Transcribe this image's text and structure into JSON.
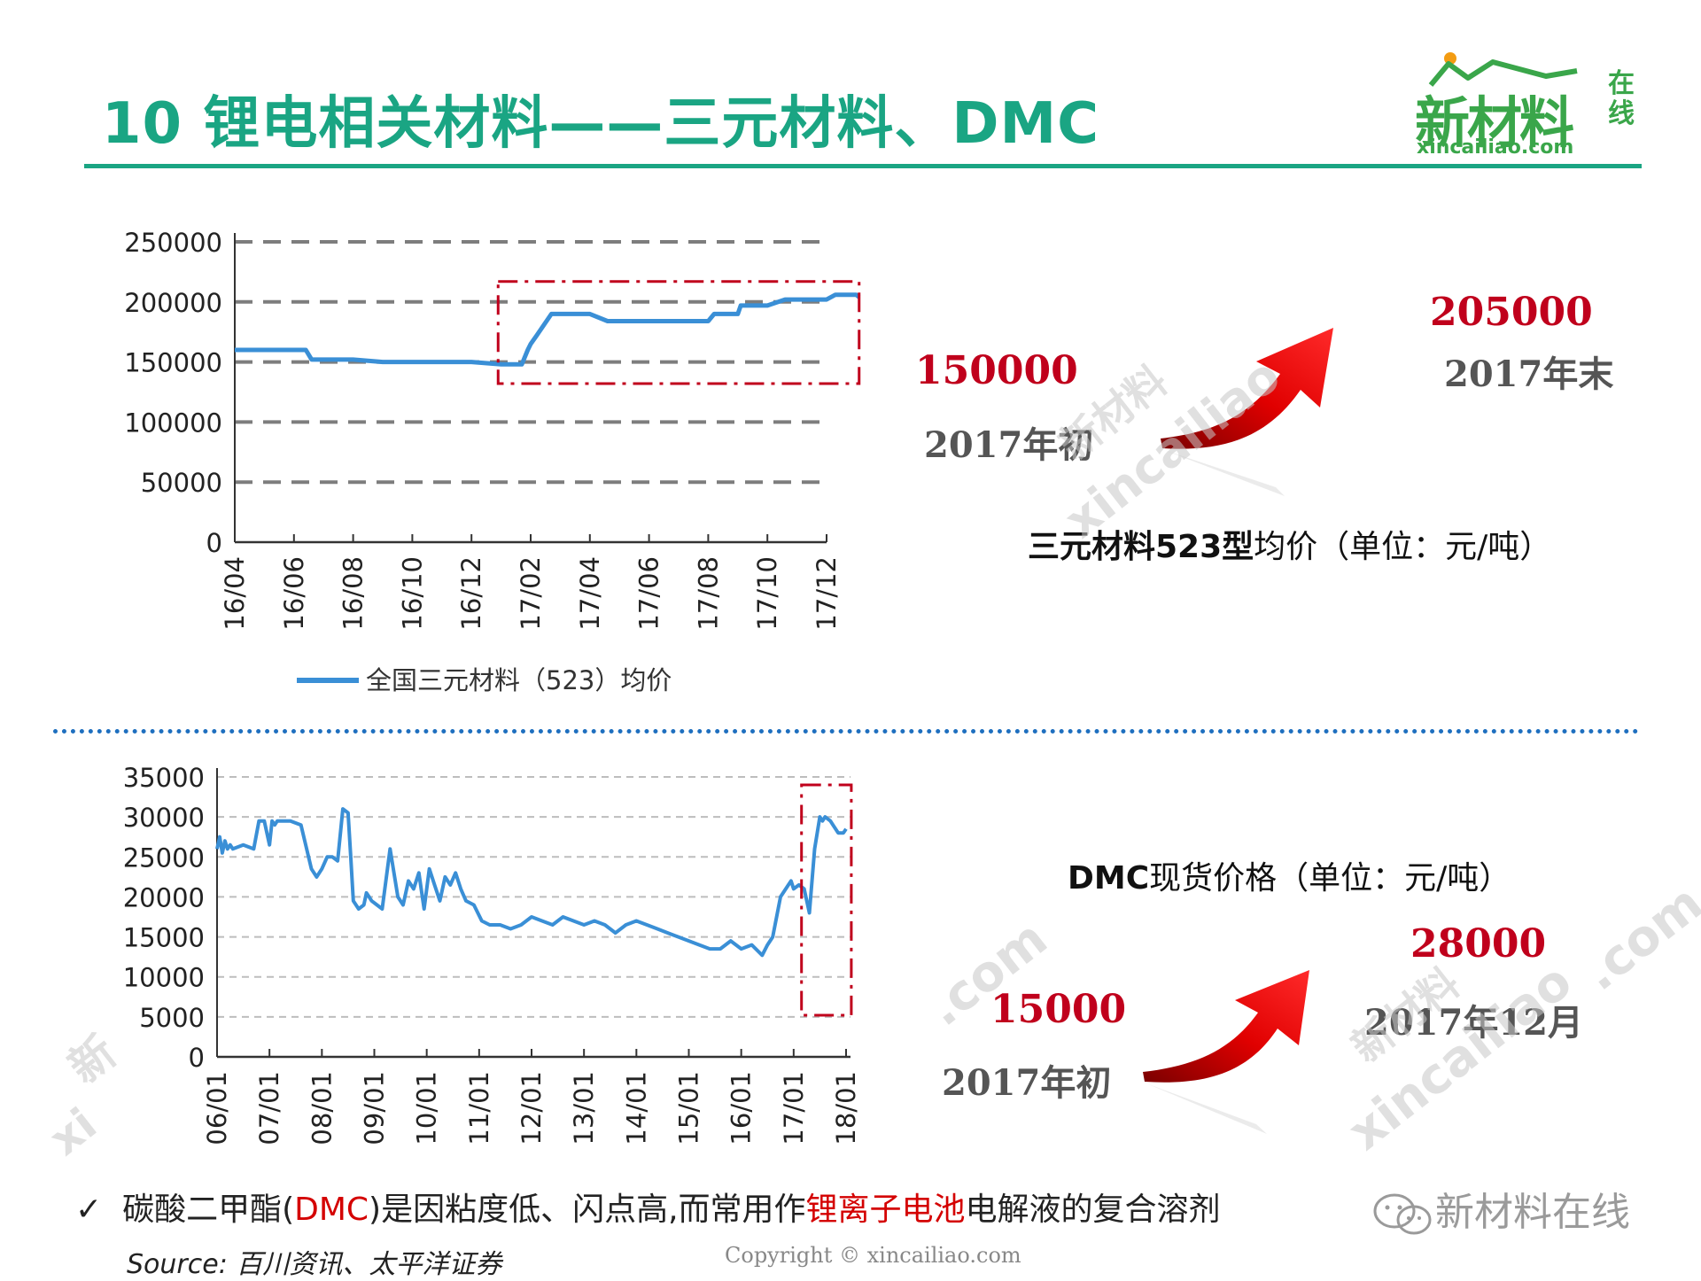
{
  "header": {
    "title": "10  锂电相关材料——三元材料、DMC",
    "logo_text": "新材料",
    "logo_side": "在线",
    "logo_url": "xincailiao.com"
  },
  "colors": {
    "accent": "#1aa583",
    "line": "#3a8fd6",
    "highlight_box": "#c0001c",
    "value_red": "#c0001c",
    "arrow_red": "#e00000"
  },
  "chart_data": [
    {
      "type": "line",
      "legend": "全国三元材料（523）均价",
      "legend_position": "bottom",
      "y_ticks": [
        "250000",
        "200000",
        "150000",
        "100000",
        "50000",
        "0"
      ],
      "ylim": [
        0,
        250000
      ],
      "x_tick_labels": [
        "16/04",
        "16/06",
        "16/08",
        "16/10",
        "16/12",
        "17/02",
        "17/04",
        "17/06",
        "17/08",
        "17/10",
        "17/12"
      ],
      "grid": "dashed",
      "series": [
        {
          "x": [
            0,
            1.2,
            1.3,
            2,
            2.5,
            3,
            4,
            4.5,
            4.7,
            4.85,
            4.95,
            5.0,
            5.1,
            5.35,
            5.9,
            6.0,
            6.3,
            7.0,
            7.5,
            8.0,
            8.1,
            8.5,
            8.55,
            9.0,
            9.3,
            10.0,
            10.15,
            10.5,
            10.55
          ],
          "y": [
            160000,
            160000,
            152000,
            152000,
            150000,
            150000,
            150000,
            148000,
            148000,
            148000,
            160000,
            165000,
            172000,
            190000,
            190000,
            190000,
            184000,
            184000,
            184000,
            184000,
            190000,
            190000,
            197000,
            197000,
            202000,
            202000,
            206000,
            206000,
            204000
          ]
        }
      ],
      "highlight_region": {
        "x_from": 4.45,
        "x_to": 10.55,
        "y_from": 132000,
        "y_to": 217000
      }
    },
    {
      "type": "line",
      "y_ticks": [
        "35000",
        "30000",
        "25000",
        "20000",
        "15000",
        "10000",
        "5000",
        "0"
      ],
      "ylim": [
        0,
        35000
      ],
      "x_tick_labels": [
        "06/01",
        "07/01",
        "08/01",
        "09/01",
        "10/01",
        "11/01",
        "12/01",
        "13/01",
        "14/01",
        "15/01",
        "16/01",
        "17/01",
        "18/01"
      ],
      "grid": "dashed",
      "series": [
        {
          "x": [
            0,
            0.05,
            0.1,
            0.15,
            0.2,
            0.25,
            0.3,
            0.5,
            0.7,
            0.8,
            0.9,
            1.0,
            1.05,
            1.1,
            1.15,
            1.25,
            1.4,
            1.6,
            1.8,
            1.9,
            2.0,
            2.1,
            2.2,
            2.3,
            2.4,
            2.5,
            2.55,
            2.6,
            2.7,
            2.8,
            2.85,
            2.9,
            2.95,
            3.05,
            3.15,
            3.3,
            3.45,
            3.55,
            3.65,
            3.75,
            3.85,
            3.95,
            4.05,
            4.15,
            4.25,
            4.35,
            4.45,
            4.55,
            4.65,
            4.75,
            4.9,
            5.05,
            5.2,
            5.4,
            5.6,
            5.8,
            6.0,
            6.2,
            6.4,
            6.6,
            6.8,
            7.0,
            7.2,
            7.4,
            7.6,
            7.8,
            8.0,
            8.2,
            8.4,
            8.6,
            8.8,
            9.0,
            9.2,
            9.4,
            9.6,
            9.8,
            10.0,
            10.2,
            10.4,
            10.5,
            10.6,
            10.75,
            10.9,
            10.95,
            11.0,
            11.1,
            11.2,
            11.3,
            11.4,
            11.5,
            11.55,
            11.6,
            11.7,
            11.75,
            11.85,
            11.95,
            12.0
          ],
          "y": [
            26000,
            27500,
            25500,
            27000,
            26000,
            26500,
            26000,
            26500,
            26000,
            29500,
            29500,
            26500,
            29500,
            29000,
            29500,
            29500,
            29500,
            29000,
            23500,
            22500,
            23500,
            25000,
            25000,
            24500,
            31000,
            30500,
            25000,
            19500,
            18500,
            19000,
            20500,
            20000,
            19500,
            19000,
            18500,
            26000,
            20000,
            19000,
            22000,
            21000,
            23000,
            18500,
            23500,
            21500,
            19500,
            22500,
            21500,
            23000,
            21000,
            19500,
            19000,
            17000,
            16500,
            16500,
            16000,
            16500,
            17500,
            17000,
            16500,
            17500,
            17000,
            16500,
            17000,
            16500,
            15500,
            16500,
            17000,
            16500,
            16000,
            15500,
            15000,
            14500,
            14000,
            13500,
            13500,
            14500,
            13500,
            14000,
            12700,
            14000,
            15000,
            20000,
            21500,
            22000,
            21000,
            21500,
            21000,
            18000,
            26000,
            30000,
            29500,
            30000,
            29500,
            29000,
            28000,
            28000,
            28500
          ]
        }
      ],
      "highlight_region": {
        "x_from": 11.15,
        "x_to": 12.1,
        "y_from": 5200,
        "y_to": 34000
      }
    }
  ],
  "panel1": {
    "start_value": "150000",
    "start_label": "2017年初",
    "end_value": "205000",
    "end_label": "2017年末",
    "caption_bold": "三元材料523型",
    "caption_rest": "均价（单位：元/吨）"
  },
  "panel2": {
    "start_value": "15000",
    "start_label": "2017年初",
    "end_value": "28000",
    "end_label": "2017年12月",
    "caption_bold": "DMC",
    "caption_rest": "现货价格（单位：元/吨）"
  },
  "footer": {
    "check": "✓",
    "bullet_pre": "碳酸二甲酯(",
    "bullet_dmc": "DMC",
    "bullet_mid": ")是因粘度低、闪点高,而常用作",
    "bullet_hl": "锂离子电池",
    "bullet_post": "电解液的复合溶剂",
    "source": "Source: 百川资讯、太平洋证券",
    "copyright": "Copyright © xincailiao.com",
    "wechat_name": "新材料在线"
  },
  "watermarks": {
    "brand_cn": "新材料",
    "brand_latin": "xincailiao",
    "suffix": ".com",
    "cn_fragment": "新",
    "latin_fragment": "xi"
  }
}
